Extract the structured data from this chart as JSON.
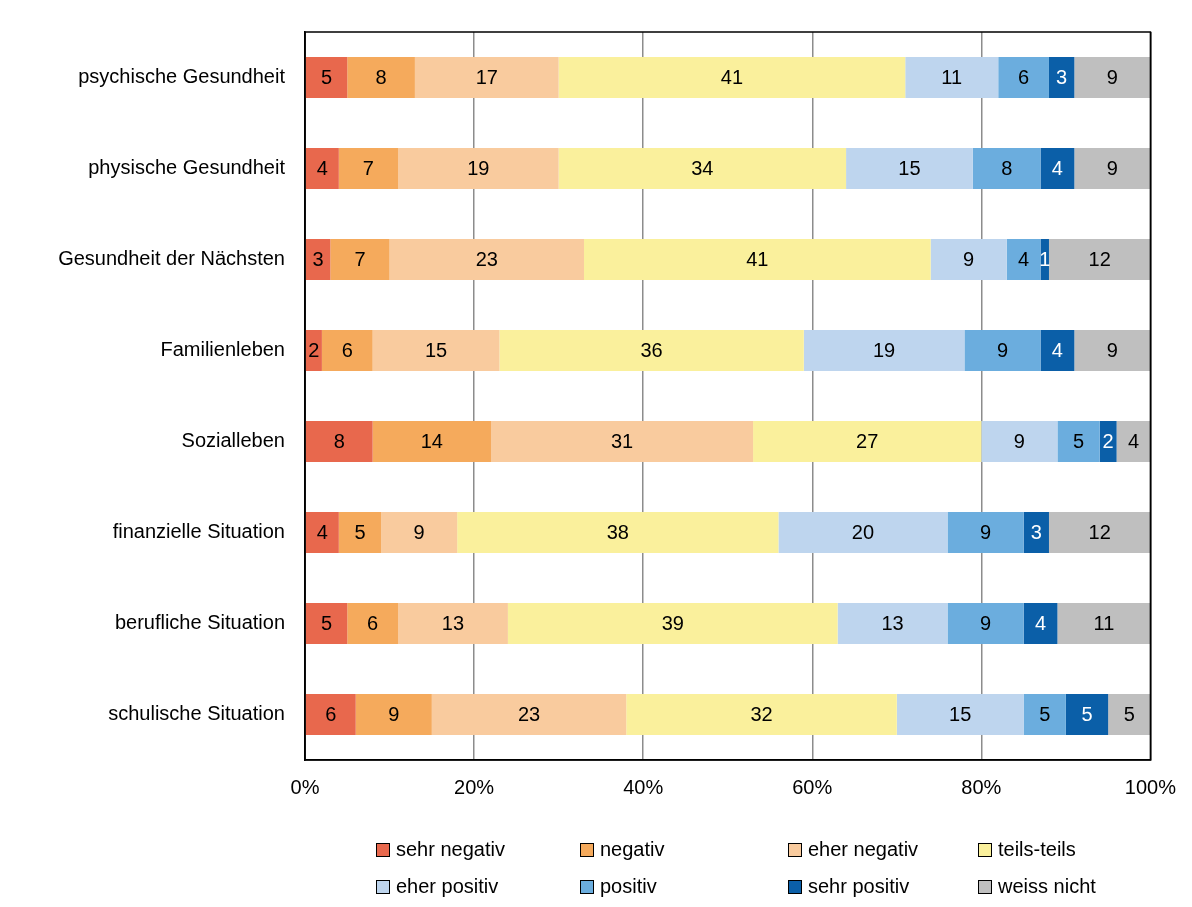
{
  "chart_data": {
    "type": "bar",
    "orientation": "horizontal",
    "stacked": true,
    "data_labels": true,
    "grid": "x",
    "legend": "bottom",
    "categories": [
      "psychische Gesundheit",
      "physische Gesundheit",
      "Gesundheit der Nächsten",
      "Familienleben",
      "Sozialleben",
      "finanzielle Situation",
      "berufliche Situation",
      "schulische Situation"
    ],
    "xlim": [
      0,
      100
    ],
    "xticks": [
      {
        "value": 0,
        "label": "0%"
      },
      {
        "value": 20,
        "label": "20%"
      },
      {
        "value": 40,
        "label": "40%"
      },
      {
        "value": 60,
        "label": "60%"
      },
      {
        "value": 80,
        "label": "80%"
      },
      {
        "value": 100,
        "label": "100%"
      }
    ],
    "series": [
      {
        "name": "sehr negativ",
        "color": "#e8684d",
        "values": [
          5,
          4,
          3,
          2,
          8,
          4,
          5,
          6
        ]
      },
      {
        "name": "negativ",
        "color": "#f5aa5c",
        "values": [
          8,
          7,
          7,
          6,
          14,
          5,
          6,
          9
        ]
      },
      {
        "name": "eher negativ",
        "color": "#f9cb9e",
        "values": [
          17,
          19,
          23,
          15,
          31,
          9,
          13,
          23
        ]
      },
      {
        "name": "teils-teils",
        "color": "#faf09c",
        "values": [
          41,
          34,
          41,
          36,
          27,
          38,
          39,
          32
        ]
      },
      {
        "name": "eher positiv",
        "color": "#bed5ee",
        "values": [
          11,
          15,
          9,
          19,
          9,
          20,
          13,
          15
        ]
      },
      {
        "name": "positiv",
        "color": "#6badde",
        "values": [
          6,
          8,
          4,
          9,
          5,
          9,
          9,
          5
        ]
      },
      {
        "name": "sehr positiv",
        "color": "#0b5fa8",
        "values": [
          3,
          4,
          1,
          4,
          2,
          3,
          4,
          5
        ]
      },
      {
        "name": "weiss nicht",
        "color": "#bfbfbf",
        "values": [
          9,
          9,
          12,
          9,
          4,
          12,
          11,
          5
        ]
      }
    ]
  }
}
